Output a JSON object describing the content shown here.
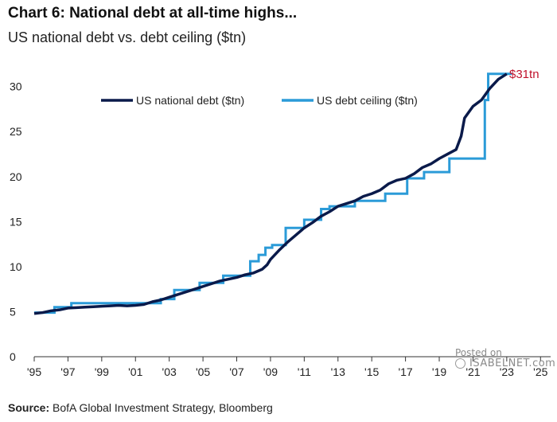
{
  "header": {
    "title": "Chart 6: National debt at all-time highs...",
    "subtitle": "US national debt vs. debt ceiling ($tn)"
  },
  "footer": {
    "source_label": "Source:",
    "source_text": "BofA Global Investment Strategy, Bloomberg"
  },
  "watermark": {
    "line1": "Posted on",
    "line2": "ISABELNET.com"
  },
  "chart_data": {
    "type": "line",
    "title": "Chart 6: National debt at all-time highs...",
    "subtitle": "US national debt vs. debt ceiling ($tn)",
    "xlabel": "",
    "ylabel": "",
    "xlim": [
      1995,
      2025.6
    ],
    "ylim": [
      0,
      32
    ],
    "yticks": [
      0,
      5,
      10,
      15,
      20,
      25,
      30
    ],
    "xtick_values": [
      1995,
      1997,
      1999,
      2001,
      2003,
      2005,
      2007,
      2009,
      2011,
      2013,
      2015,
      2017,
      2019,
      2021,
      2023,
      2025
    ],
    "xtick_labels": [
      "'95",
      "'97",
      "'99",
      "'01",
      "'03",
      "'05",
      "'07",
      "'09",
      "'11",
      "'13",
      "'15",
      "'17",
      "'19",
      "'21",
      "'23",
      "'25"
    ],
    "grid": false,
    "legend": {
      "position": "top-left",
      "orientation": "horizontal"
    },
    "annotations": [
      {
        "text": "$31tn",
        "x": 2023.0,
        "y": 31.4,
        "color": "#c0122c"
      }
    ],
    "series": [
      {
        "name": "US national debt ($tn)",
        "color": "#0a1a4a",
        "x": [
          1995.0,
          1995.5,
          1996.0,
          1996.5,
          1997.0,
          1997.5,
          1998.0,
          1998.5,
          1999.0,
          1999.5,
          2000.0,
          2000.5,
          2001.0,
          2001.5,
          2002.0,
          2002.5,
          2003.0,
          2003.5,
          2004.0,
          2004.5,
          2005.0,
          2005.5,
          2006.0,
          2006.5,
          2007.0,
          2007.5,
          2008.0,
          2008.5,
          2008.8,
          2009.0,
          2009.5,
          2010.0,
          2010.5,
          2011.0,
          2011.5,
          2012.0,
          2012.5,
          2013.0,
          2013.5,
          2014.0,
          2014.5,
          2015.0,
          2015.5,
          2016.0,
          2016.5,
          2017.0,
          2017.5,
          2018.0,
          2018.5,
          2019.0,
          2019.5,
          2020.0,
          2020.3,
          2020.5,
          2021.0,
          2021.5,
          2022.0,
          2022.5,
          2023.0
        ],
        "y": [
          4.8,
          4.9,
          5.1,
          5.2,
          5.4,
          5.45,
          5.5,
          5.55,
          5.6,
          5.65,
          5.7,
          5.65,
          5.7,
          5.8,
          6.1,
          6.3,
          6.6,
          6.9,
          7.2,
          7.5,
          7.8,
          8.1,
          8.4,
          8.6,
          8.8,
          9.1,
          9.3,
          9.7,
          10.2,
          10.8,
          11.8,
          12.7,
          13.5,
          14.3,
          14.9,
          15.6,
          16.1,
          16.7,
          17.0,
          17.3,
          17.8,
          18.1,
          18.5,
          19.2,
          19.6,
          19.8,
          20.3,
          21.0,
          21.4,
          22.0,
          22.5,
          23.0,
          24.5,
          26.5,
          27.8,
          28.5,
          29.8,
          30.8,
          31.4
        ]
      },
      {
        "name": "US debt ceiling ($tn)",
        "color": "#2b9bd8",
        "step": true,
        "x": [
          1995.0,
          1996.2,
          1997.2,
          2002.5,
          2003.3,
          2004.8,
          2006.2,
          2007.8,
          2008.3,
          2008.7,
          2009.1,
          2009.9,
          2011.0,
          2012.0,
          2012.5,
          2014.0,
          2015.8,
          2017.1,
          2018.1,
          2019.6,
          2021.7,
          2021.9,
          2023.3
        ],
        "y": [
          4.9,
          5.5,
          5.95,
          6.4,
          7.4,
          8.2,
          9.0,
          10.6,
          11.3,
          12.1,
          12.4,
          14.3,
          15.2,
          16.4,
          16.7,
          17.3,
          18.1,
          19.8,
          20.5,
          22.0,
          28.5,
          31.4,
          31.4
        ]
      }
    ]
  }
}
